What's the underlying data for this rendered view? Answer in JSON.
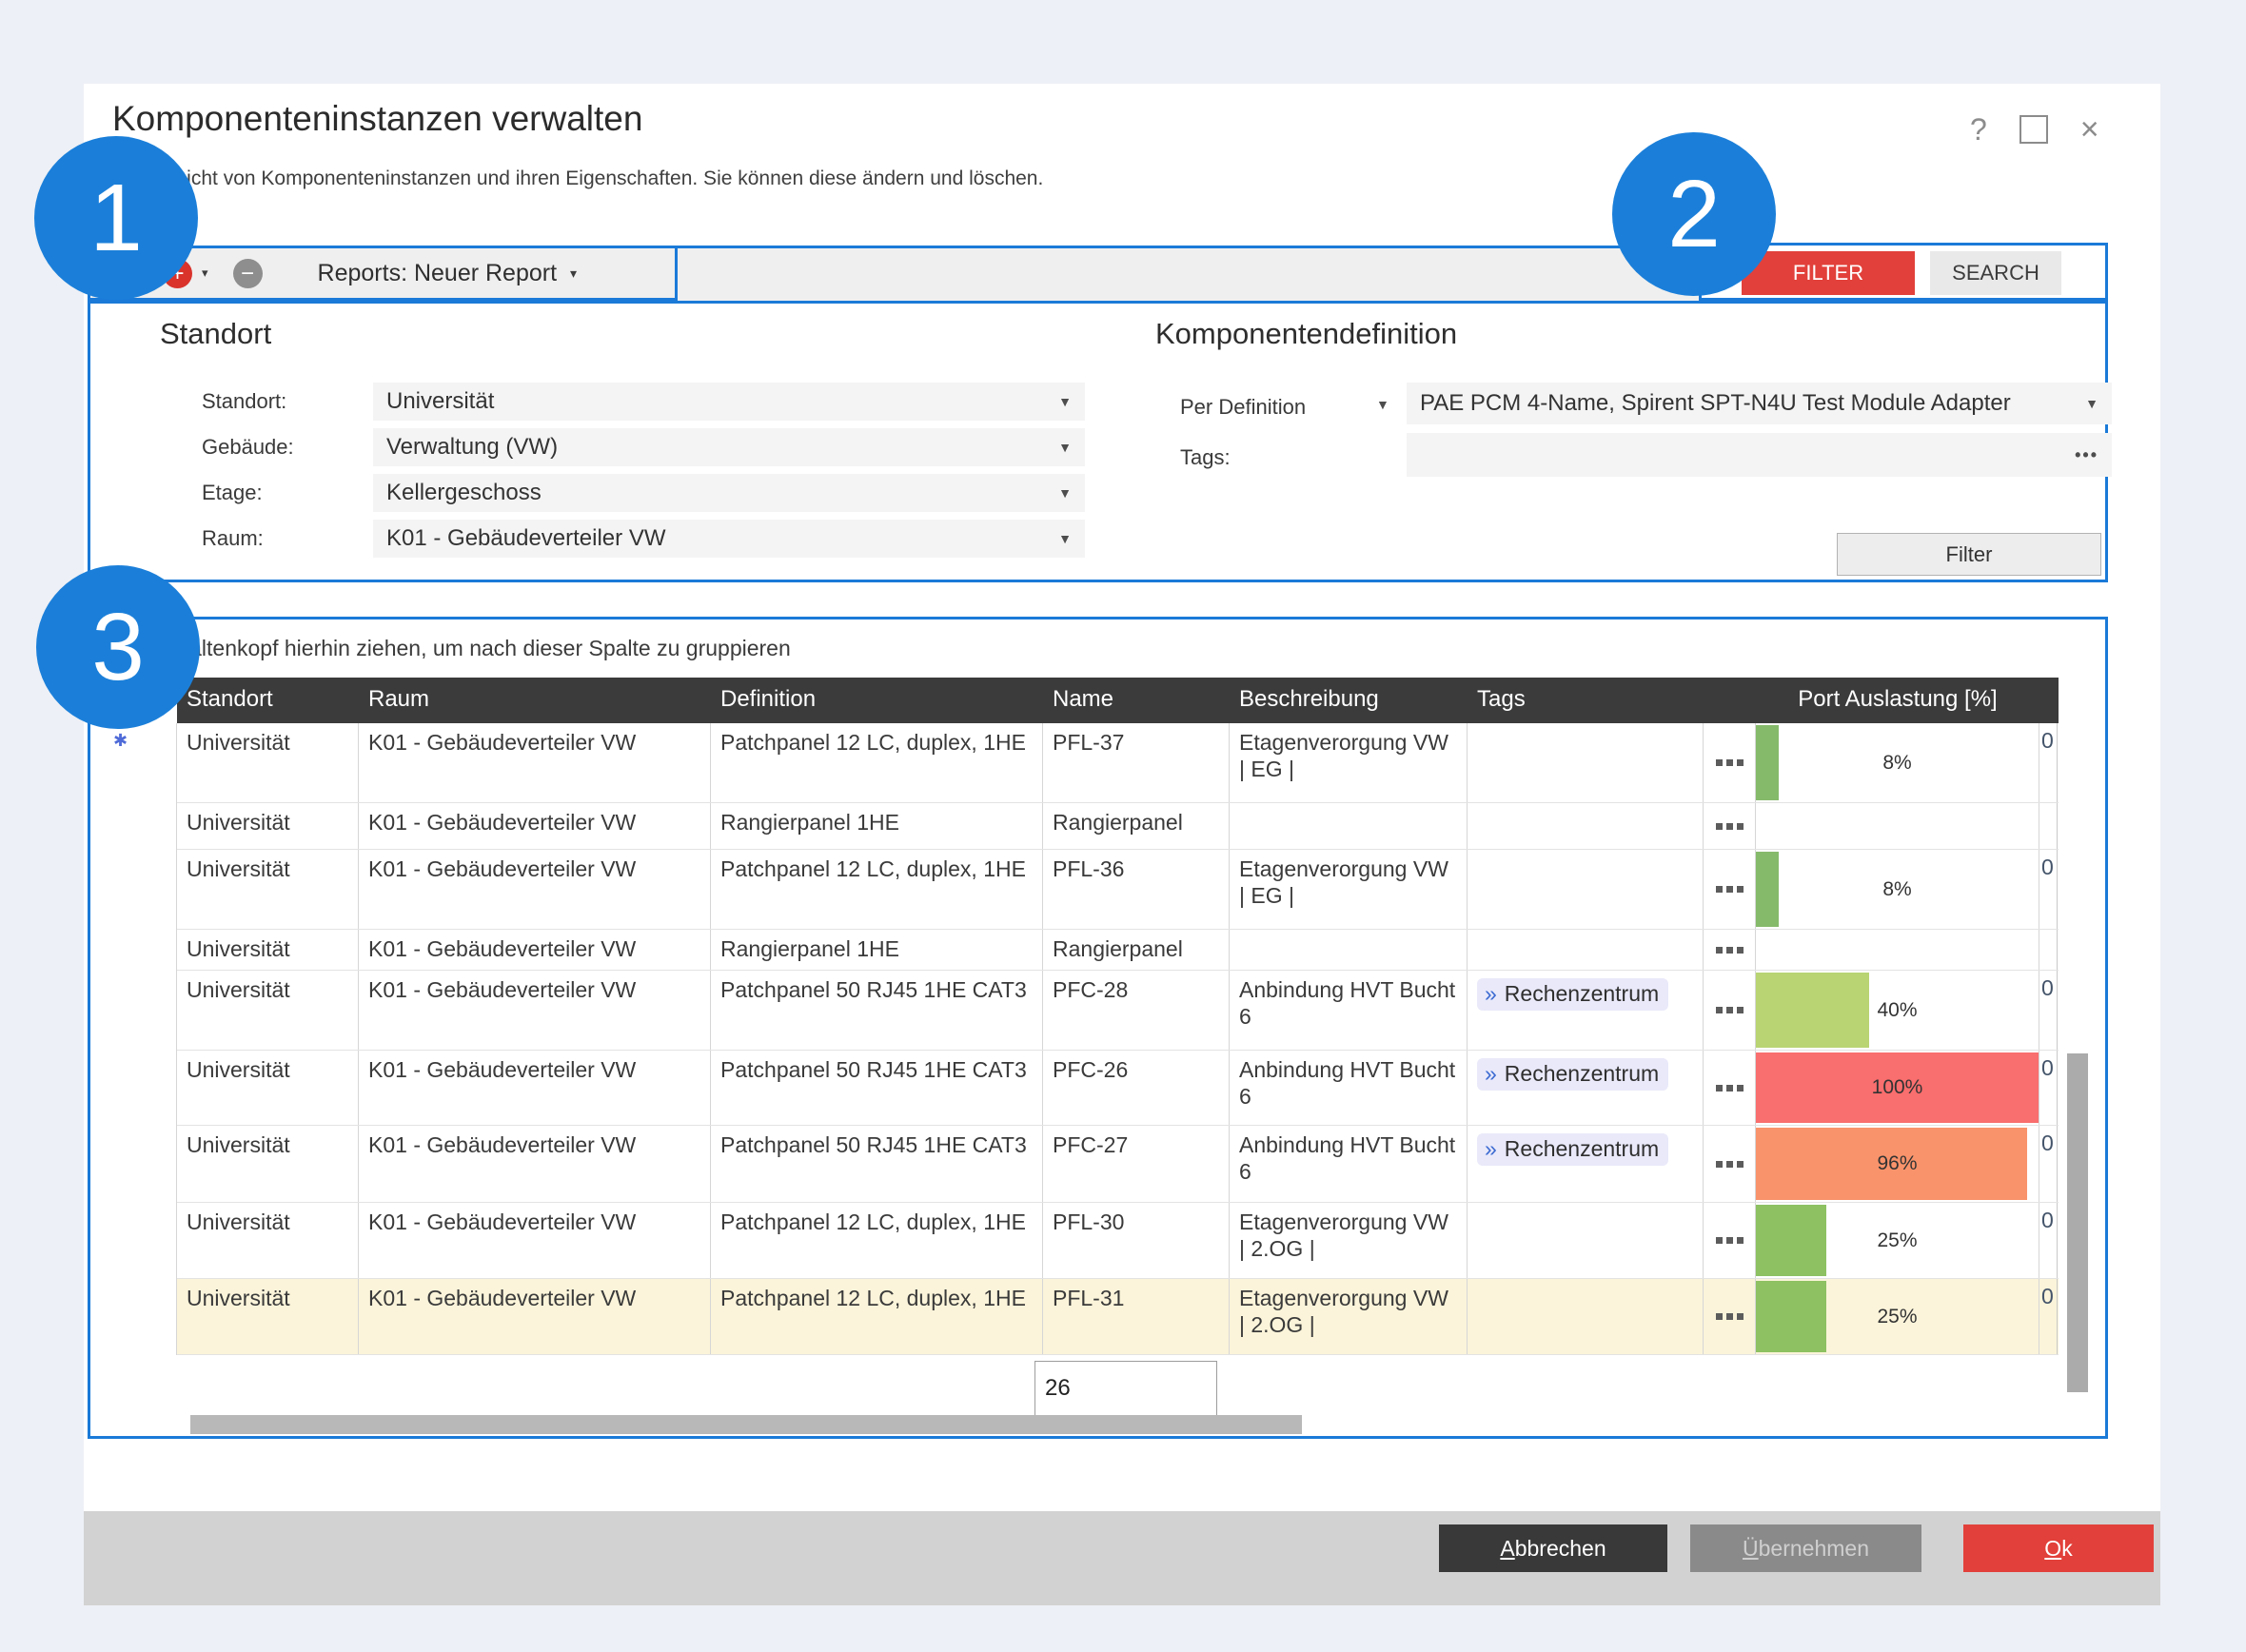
{
  "window": {
    "title": "Komponenteninstanzen verwalten",
    "subtitle": "Ansicht von Komponenteninstanzen und ihren Eigenschaften. Sie können diese ändern und löschen.",
    "help_icon": "?",
    "close_icon": "×"
  },
  "annotations": {
    "badges": [
      {
        "label": "1"
      },
      {
        "label": "2"
      },
      {
        "label": "3"
      }
    ],
    "color": "#1b7fd9"
  },
  "tabs": {
    "add_icon": "+",
    "remove_icon": "−",
    "label": "Reports: Neuer Report",
    "caret": "▾"
  },
  "actions": {
    "filter_label": "FILTER",
    "search_label": "SEARCH"
  },
  "filter_panel": {
    "standort_section": {
      "title": "Standort",
      "fields": [
        {
          "label": "Standort:",
          "value": "Universität"
        },
        {
          "label": "Gebäude:",
          "value": "Verwaltung (VW)"
        },
        {
          "label": "Etage:",
          "value": "Kellergeschoss"
        },
        {
          "label": "Raum:",
          "value": "K01 - Gebäudeverteiler VW"
        }
      ]
    },
    "definition_section": {
      "title": "Komponentendefinition",
      "per_definition_label": "Per Definition",
      "definition_value": "PAE PCM 4-Name, Spirent SPT-N4U Test Module Adapter",
      "tags_label": "Tags:",
      "tags_value": "",
      "ellipsis": "•••",
      "filter_button": "Filter"
    }
  },
  "grid": {
    "group_hint": "Spaltenkopf hierhin ziehen, um nach dieser Spalte zu gruppieren",
    "columns": [
      "Standort",
      "Raum",
      "Definition",
      "Name",
      "Beschreibung",
      "Tags",
      "Port Auslastung [%]"
    ],
    "tag_marker": "»",
    "row_marker": "✱",
    "editor_value": "26",
    "rows": [
      {
        "standort": "Universität",
        "raum": "K01 - Gebäudeverteiler VW",
        "definition": "Patchpanel 12 LC, duplex, 1HE",
        "name": "PFL-37",
        "beschreibung": "Etagenverorgung VW | EG |",
        "tags": [],
        "port_pct": 8,
        "port_label": "8%",
        "port_color": "#85ba6b",
        "last": "0",
        "highlighted": false
      },
      {
        "standort": "Universität",
        "raum": "K01 - Gebäudeverteiler VW",
        "definition": "Rangierpanel 1HE",
        "name": "Rangierpanel",
        "beschreibung": "",
        "tags": [],
        "port_pct": 0,
        "port_label": "",
        "port_color": "",
        "last": "",
        "highlighted": false
      },
      {
        "standort": "Universität",
        "raum": "K01 - Gebäudeverteiler VW",
        "definition": "Patchpanel 12 LC, duplex, 1HE",
        "name": "PFL-36",
        "beschreibung": "Etagenverorgung VW | EG |",
        "tags": [],
        "port_pct": 8,
        "port_label": "8%",
        "port_color": "#85ba6b",
        "last": "0",
        "highlighted": false
      },
      {
        "standort": "Universität",
        "raum": "K01 - Gebäudeverteiler VW",
        "definition": "Rangierpanel 1HE",
        "name": "Rangierpanel",
        "beschreibung": "",
        "tags": [],
        "port_pct": 0,
        "port_label": "",
        "port_color": "",
        "last": "",
        "highlighted": false
      },
      {
        "standort": "Universität",
        "raum": "K01 - Gebäudeverteiler VW",
        "definition": "Patchpanel 50 RJ45 1HE CAT3",
        "name": "PFC-28",
        "beschreibung": "Anbindung HVT Bucht 6",
        "tags": [
          "Rechenzentrum"
        ],
        "port_pct": 40,
        "port_label": "40%",
        "port_color": "#b8d473",
        "last": "0",
        "highlighted": false
      },
      {
        "standort": "Universität",
        "raum": "K01 - Gebäudeverteiler VW",
        "definition": "Patchpanel 50 RJ45 1HE CAT3",
        "name": "PFC-26",
        "beschreibung": "Anbindung HVT Bucht 6",
        "tags": [
          "Rechenzentrum"
        ],
        "port_pct": 100,
        "port_label": "100%",
        "port_color": "#f96e6e",
        "last": "0",
        "highlighted": false
      },
      {
        "standort": "Universität",
        "raum": "K01 - Gebäudeverteiler VW",
        "definition": "Patchpanel 50 RJ45 1HE CAT3",
        "name": "PFC-27",
        "beschreibung": "Anbindung HVT Bucht 6",
        "tags": [
          "Rechenzentrum"
        ],
        "port_pct": 96,
        "port_label": "96%",
        "port_color": "#f9936b",
        "last": "0",
        "highlighted": false
      },
      {
        "standort": "Universität",
        "raum": "K01 - Gebäudeverteiler VW",
        "definition": "Patchpanel 12 LC, duplex, 1HE",
        "name": "PFL-30",
        "beschreibung": "Etagenverorgung VW | 2.OG |",
        "tags": [],
        "port_pct": 25,
        "port_label": "25%",
        "port_color": "#8dc162",
        "last": "0",
        "highlighted": false
      },
      {
        "standort": "Universität",
        "raum": "K01 - Gebäudeverteiler VW",
        "definition": "Patchpanel 12 LC, duplex, 1HE",
        "name": "PFL-31",
        "beschreibung": "Etagenverorgung VW | 2.OG |",
        "tags": [],
        "port_pct": 25,
        "port_label": "25%",
        "port_color": "#8dc162",
        "last": "0",
        "highlighted": true
      }
    ]
  },
  "footer": {
    "cancel": "Abbrechen",
    "apply": "Übernehmen",
    "ok": "Ok"
  },
  "colors": {
    "accent_blue": "#1b7ad8",
    "badge_blue": "#1b7fd9",
    "danger_red": "#e2403a",
    "header_dark": "#3b3b3b",
    "row_highlight": "#fbf4da",
    "chip_bg": "#e9e9fa",
    "footer_gray": "#d2d2d2"
  }
}
